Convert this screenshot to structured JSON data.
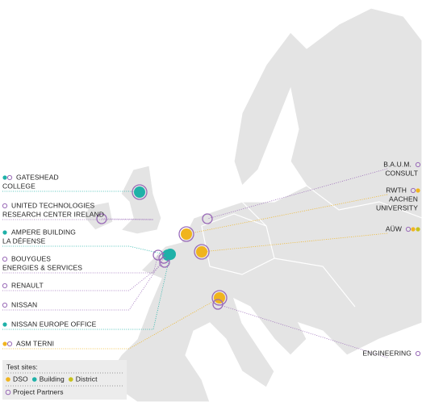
{
  "sites": [
    {
      "lines": [
        "GATESHEAD",
        "COLLEGE"
      ],
      "kinds": [
        "building",
        "partner"
      ]
    },
    {
      "lines": [
        "UNITED TECHNOLOGIES",
        "RESEARCH CENTER IRELAND"
      ],
      "kinds": [
        "partner"
      ]
    },
    {
      "lines": [
        "AMPERE BUILDING",
        "LA DÉFENSE"
      ],
      "kinds": [
        "building"
      ]
    },
    {
      "lines": [
        "BOUYGUES",
        "ENERGIES & SERVICES"
      ],
      "kinds": [
        "partner"
      ]
    },
    {
      "lines": [
        "RENAULT"
      ],
      "kinds": [
        "partner"
      ]
    },
    {
      "lines": [
        "NISSAN"
      ],
      "kinds": [
        "partner"
      ]
    },
    {
      "lines": [
        "NISSAN EUROPE OFFICE"
      ],
      "kinds": [
        "building"
      ]
    },
    {
      "lines": [
        "ASM TERNI"
      ],
      "kinds": [
        "dso",
        "partner"
      ]
    },
    {
      "lines": [
        "B.A.U.M.",
        "CONSULT"
      ],
      "kinds": [
        "partner"
      ]
    },
    {
      "lines": [
        "RWTH",
        "AACHEN",
        "UNIVERSITY"
      ],
      "kinds": [
        "partner",
        "dso"
      ]
    },
    {
      "lines": [
        "AÜW"
      ],
      "kinds": [
        "partner",
        "dso",
        "district"
      ]
    },
    {
      "lines": [
        "ENGINEERING"
      ],
      "kinds": [
        "partner"
      ]
    }
  ],
  "legend": {
    "title": "Test sites:",
    "items": [
      {
        "label": "DSO",
        "kind": "dso",
        "color": "#f0b41e"
      },
      {
        "label": "Building",
        "kind": "building",
        "color": "#1fb1a8"
      },
      {
        "label": "District",
        "kind": "district",
        "color": "#c7c21c"
      },
      {
        "label": "Project Partners",
        "kind": "partner",
        "color": "#9a6bb8"
      }
    ]
  }
}
